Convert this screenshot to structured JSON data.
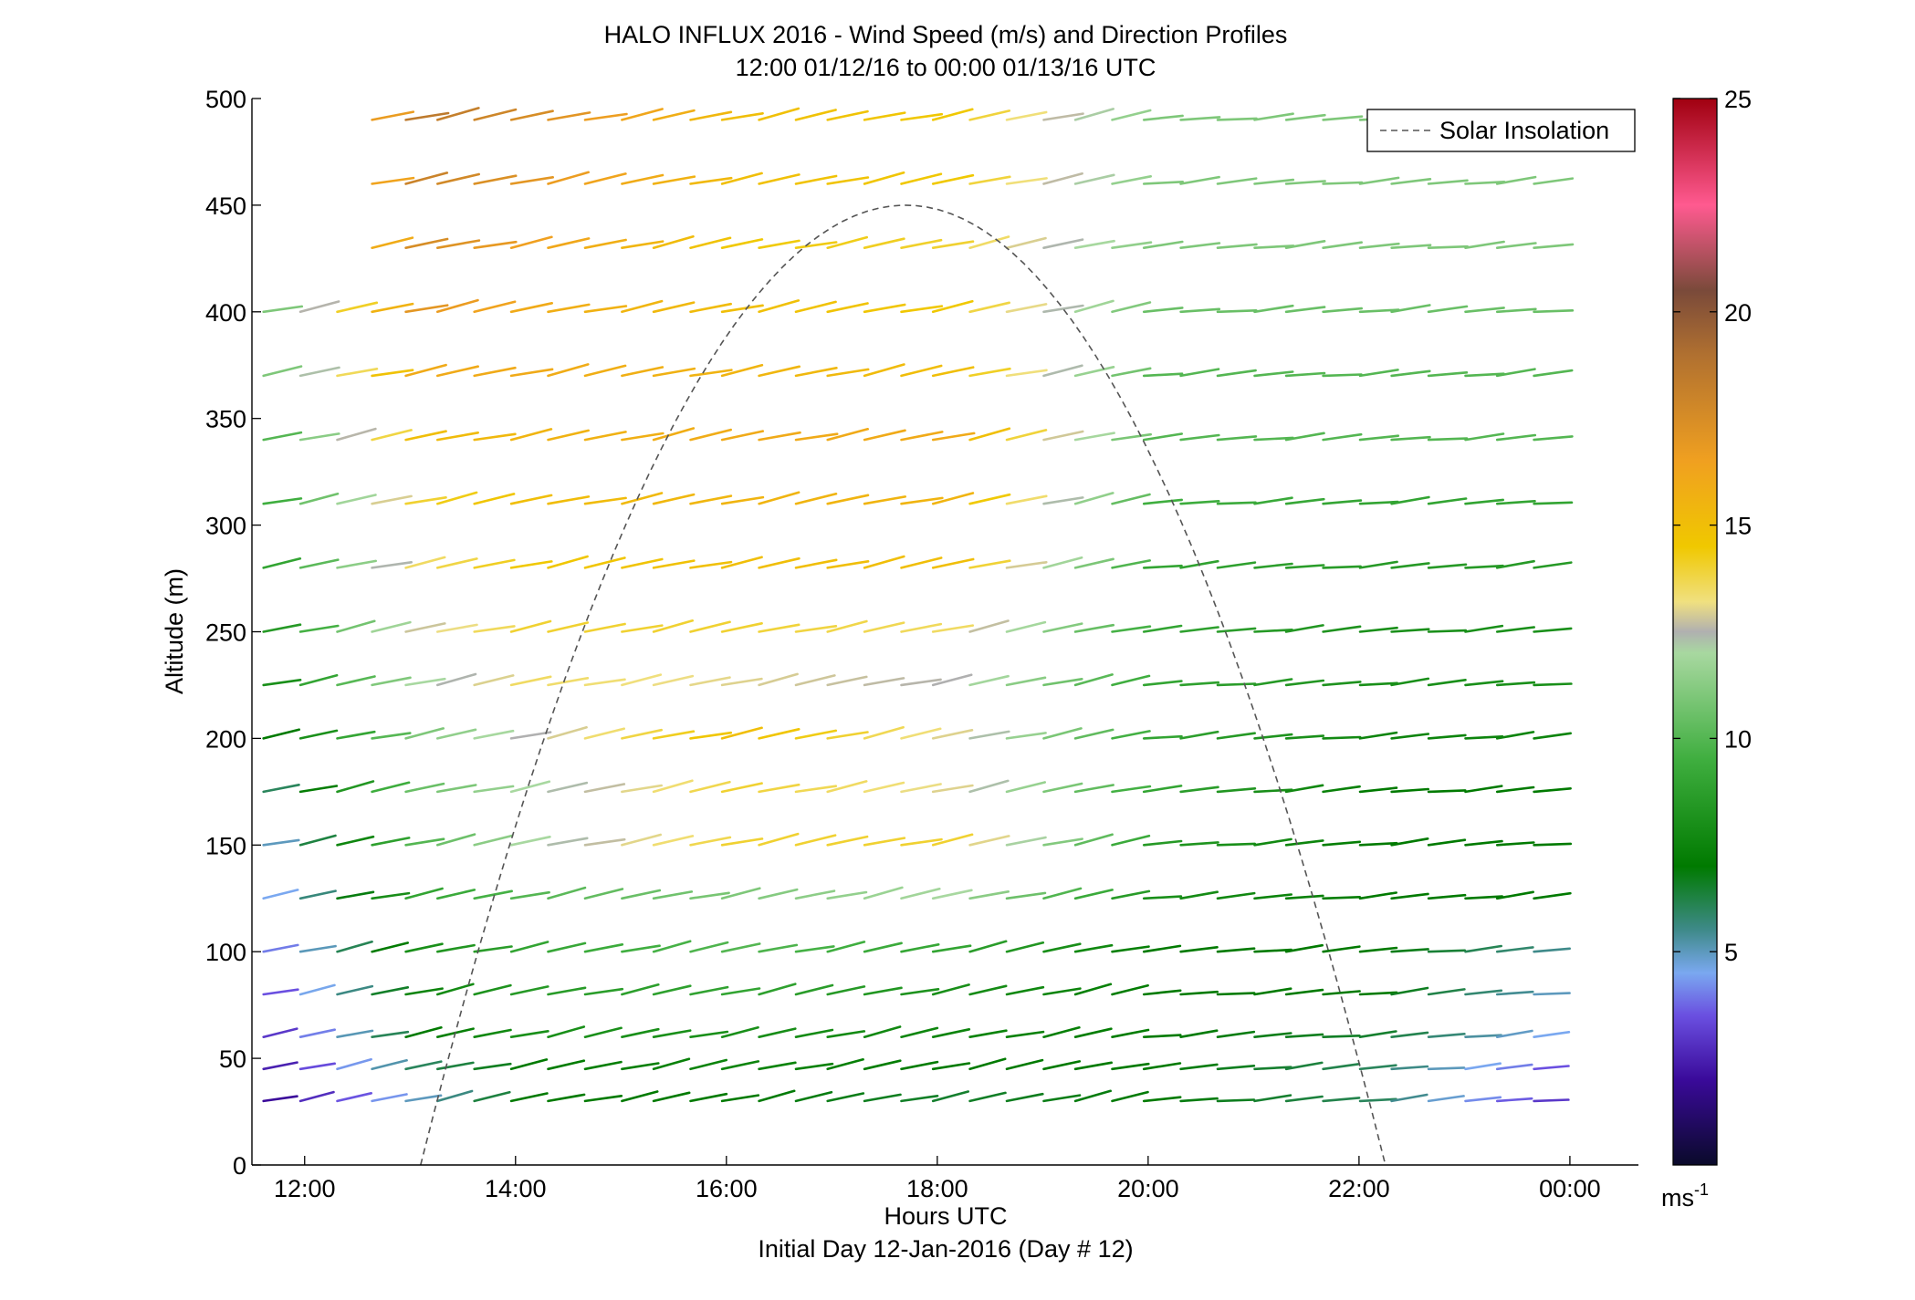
{
  "chart_data": {
    "type": "wind-barb-profile",
    "title": "HALO INFLUX 2016 - Wind Speed (m/s) and Direction Profiles",
    "subtitle": "12:00 01/12/16 to 00:00 01/13/16  UTC",
    "xlabel": "Hours UTC",
    "xlabel2": "Initial Day 12-Jan-2016 (Day # 12)",
    "ylabel": "Altitude (m)",
    "xlim_hours": [
      11.5,
      24.65
    ],
    "ylim": [
      0,
      500
    ],
    "x_ticks": [
      {
        "hour": 12,
        "label": "12:00"
      },
      {
        "hour": 14,
        "label": "14:00"
      },
      {
        "hour": 16,
        "label": "16:00"
      },
      {
        "hour": 18,
        "label": "18:00"
      },
      {
        "hour": 20,
        "label": "20:00"
      },
      {
        "hour": 22,
        "label": "22:00"
      },
      {
        "hour": 24,
        "label": "00:00"
      }
    ],
    "y_ticks": [
      0,
      50,
      100,
      150,
      200,
      250,
      300,
      350,
      400,
      450,
      500
    ],
    "legend": {
      "label": "Solar Insolation",
      "position": "top-right",
      "line_color": "#555555",
      "line_style": "dashed"
    },
    "solar_insolation": {
      "start_hour": 13.1,
      "peak_hour": 17.7,
      "end_hour": 22.25,
      "peak_altitude": 450
    },
    "colorbar": {
      "min": 0,
      "max": 25,
      "ticks": [
        5,
        10,
        15,
        20,
        25
      ],
      "unit": "ms",
      "unit_exp": "-1",
      "stops": [
        {
          "v": 0,
          "c": "#0a0a2a"
        },
        {
          "v": 2,
          "c": "#3a0a9a"
        },
        {
          "v": 3.5,
          "c": "#6a4fe0"
        },
        {
          "v": 4.5,
          "c": "#7aa8f0"
        },
        {
          "v": 5.5,
          "c": "#3f8a8a"
        },
        {
          "v": 7,
          "c": "#007a00"
        },
        {
          "v": 9.5,
          "c": "#3fae3f"
        },
        {
          "v": 12,
          "c": "#a8d8a0"
        },
        {
          "v": 12.5,
          "c": "#b0b0b0"
        },
        {
          "v": 13.2,
          "c": "#f0e080"
        },
        {
          "v": 14.5,
          "c": "#f0c800"
        },
        {
          "v": 16.5,
          "c": "#f0a020"
        },
        {
          "v": 19,
          "c": "#b07030"
        },
        {
          "v": 20.5,
          "c": "#7a4a3a"
        },
        {
          "v": 22.5,
          "c": "#ff5a90"
        },
        {
          "v": 25,
          "c": "#a00010"
        }
      ]
    },
    "wind_vectors": {
      "times_hours": [
        11.8,
        12.15,
        12.5,
        12.83,
        13.15,
        13.45,
        13.8,
        14.15,
        14.5,
        14.85,
        15.2,
        15.5,
        15.85,
        16.15,
        16.5,
        16.85,
        17.15,
        17.5,
        17.85,
        18.15,
        18.5,
        18.85,
        19.2,
        19.5,
        19.85,
        20.15,
        20.5,
        20.85,
        21.2,
        21.5,
        21.85,
        22.2,
        22.5,
        22.85,
        23.2,
        23.5,
        23.85
      ],
      "altitudes_m": [
        30,
        45,
        60,
        80,
        100,
        125,
        150,
        175,
        200,
        225,
        250,
        280,
        310,
        340,
        370,
        400,
        430,
        460,
        490
      ],
      "coverage": [
        {
          "t_min": 11.8,
          "t_max": 13.8,
          "alt_max": 500,
          "alt_min_by_time": [
            [
              11.8,
              30,
              400
            ],
            [
              12.8,
              30,
              500
            ]
          ]
        },
        {
          "t_min": 14.15,
          "t_max": 23.85,
          "alt_max": 500
        }
      ],
      "speed_by_time": [
        {
          "hour": 11.8,
          "speeds": [
            2,
            2.5,
            3,
            3.5,
            4,
            4.5,
            5,
            6,
            7,
            8,
            8.5,
            9,
            9.5,
            10,
            11,
            11
          ]
        },
        {
          "hour": 13.15,
          "speeds": [
            5,
            6,
            7,
            7.5,
            8,
            9,
            10,
            10.5,
            11,
            12,
            12.8,
            13.5,
            14,
            15,
            16,
            17,
            17.5,
            18,
            18.5
          ]
        },
        {
          "hour": 14.15,
          "speeds": [
            7,
            7,
            8,
            8.5,
            9,
            10,
            12,
            12,
            12.5,
            13.5,
            14,
            14.5,
            15,
            15.5,
            16,
            16,
            16.5,
            17,
            17.5
          ]
        },
        {
          "hour": 16.15,
          "speeds": [
            7,
            7.5,
            8,
            9,
            10,
            11,
            14,
            14,
            15,
            13,
            14,
            15,
            15.5,
            16,
            15.5,
            15,
            14.5,
            15,
            15
          ]
        },
        {
          "hour": 18.15,
          "speeds": [
            6.5,
            7,
            7.5,
            8,
            9,
            12,
            14,
            13,
            13,
            12.5,
            13.5,
            15,
            15.5,
            16,
            15,
            14.5,
            14,
            14.5,
            14.5
          ]
        },
        {
          "hour": 20.15,
          "speeds": [
            7,
            7,
            7,
            7,
            7,
            8,
            8.5,
            9,
            9,
            9,
            9,
            9,
            9.5,
            10,
            10,
            10.5,
            11,
            11,
            11
          ]
        },
        {
          "hour": 22.2,
          "speeds": [
            6,
            6,
            6.5,
            7,
            7,
            7,
            7,
            7,
            7.5,
            8,
            8,
            8.5,
            9,
            10,
            10,
            10.5,
            11,
            11,
            11
          ]
        },
        {
          "hour": 23.85,
          "speeds": [
            3,
            3.5,
            4.5,
            5,
            5.5,
            7,
            7,
            7,
            7.5,
            8,
            8,
            8.5,
            9,
            10,
            10,
            10.5,
            11,
            11,
            12
          ]
        }
      ],
      "direction_note_deg_from_north_at_surface": 240
    }
  }
}
